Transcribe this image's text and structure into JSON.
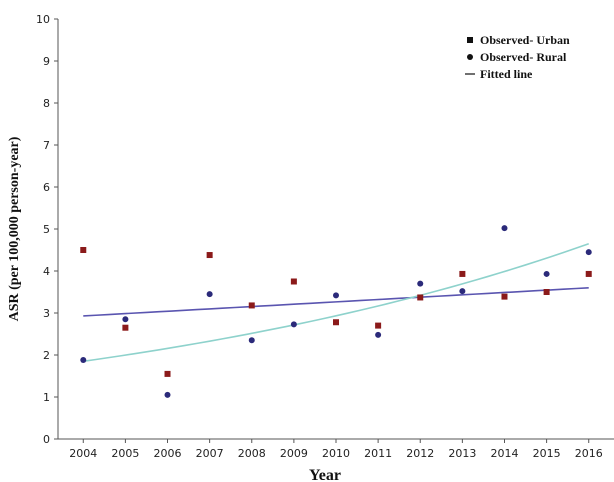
{
  "chart_data": {
    "type": "scatter",
    "xlabel": "Year",
    "ylabel": "ASR (per 100,000 person-year)",
    "x": [
      2004,
      2005,
      2006,
      2007,
      2008,
      2009,
      2010,
      2011,
      2012,
      2013,
      2014,
      2015,
      2016
    ],
    "xlim": [
      2003.4,
      2016.6
    ],
    "ylim": [
      0,
      10
    ],
    "yticks": [
      0,
      1,
      2,
      3,
      4,
      5,
      6,
      7,
      8,
      9,
      10
    ],
    "grid": false,
    "legend_position": "top-right",
    "series": [
      {
        "name": "Observed- Urban",
        "marker": "square",
        "color": "#8b1a1a",
        "values": [
          4.5,
          2.65,
          1.55,
          4.38,
          3.18,
          3.75,
          2.78,
          2.7,
          3.37,
          3.93,
          3.39,
          3.5,
          3.93
        ]
      },
      {
        "name": "Observed- Rural",
        "marker": "circle",
        "color": "#2b2a7a",
        "values": [
          1.88,
          2.85,
          1.05,
          3.45,
          2.35,
          2.73,
          3.42,
          2.48,
          3.7,
          3.52,
          5.02,
          3.93,
          4.45
        ]
      }
    ],
    "fitted_lines": [
      {
        "shape": "linear",
        "color": "#5a55b0",
        "start": 2.93,
        "end": 3.6
      },
      {
        "shape": "exponential",
        "color": "#8ed2cc",
        "start": 1.85,
        "end": 4.65
      }
    ],
    "legend_items": [
      {
        "label": "Observed- Urban",
        "symbol": "square"
      },
      {
        "label": "Observed- Rural",
        "symbol": "circle"
      },
      {
        "label": "Fitted line",
        "symbol": "line"
      }
    ]
  }
}
